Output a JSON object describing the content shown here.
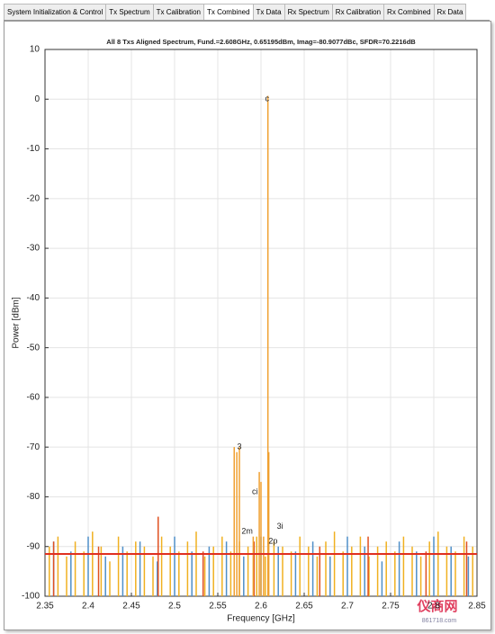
{
  "tabs": [
    "System Initialization & Control",
    "Tx Spectrum",
    "Tx Calibration",
    "Tx Combined",
    "Tx Data",
    "Rx Spectrum",
    "Rx Calibration",
    "Rx Combined",
    "Rx Data"
  ],
  "chart_data": {
    "type": "stem",
    "title": "All 8 Txs Aligned Spectrum, Fund.=2.608GHz, 0.65195dBm, Imag=-80.9077dBc, SFDR=70.2216dB",
    "x_label": "Frequency [GHz]",
    "y_label": "Power [dBm]",
    "xlim": [
      2.35,
      2.85
    ],
    "ylim": [
      -100,
      10
    ],
    "xticks": [
      2.35,
      2.4,
      2.45,
      2.5,
      2.55,
      2.6,
      2.65,
      2.7,
      2.75,
      2.8,
      2.85
    ],
    "yticks": [
      10,
      0,
      -10,
      -20,
      -30,
      -40,
      -50,
      -60,
      -70,
      -80,
      -90,
      -100
    ],
    "grid": true,
    "series": [
      {
        "color": "#4f8fc8",
        "x": [
          2.36,
          2.38,
          2.4,
          2.42,
          2.44,
          2.46,
          2.48,
          2.5,
          2.52,
          2.54,
          2.56,
          2.58,
          2.6,
          2.62,
          2.64,
          2.66,
          2.68,
          2.7,
          2.72,
          2.74,
          2.76,
          2.78,
          2.8,
          2.82,
          2.84
        ],
        "values": [
          -89,
          -91,
          -88,
          -92,
          -90,
          -89,
          -93,
          -88,
          -91,
          -90,
          -89,
          -92,
          -88,
          -90,
          -91,
          -89,
          -92,
          -88,
          -90,
          -93,
          -89,
          -91,
          -88,
          -90,
          -92
        ]
      },
      {
        "color": "#f0b020",
        "x": [
          2.355,
          2.365,
          2.375,
          2.385,
          2.395,
          2.405,
          2.415,
          2.425,
          2.435,
          2.445,
          2.455,
          2.465,
          2.475,
          2.485,
          2.495,
          2.505,
          2.515,
          2.525,
          2.535,
          2.545,
          2.555,
          2.565,
          2.575,
          2.585,
          2.595,
          2.605,
          2.615,
          2.625,
          2.635,
          2.645,
          2.655,
          2.665,
          2.675,
          2.685,
          2.695,
          2.705,
          2.715,
          2.725,
          2.735,
          2.745,
          2.755,
          2.765,
          2.775,
          2.785,
          2.795,
          2.805,
          2.815,
          2.825,
          2.835,
          2.845
        ],
        "values": [
          -90,
          -88,
          -92,
          -89,
          -91,
          -87,
          -90,
          -93,
          -88,
          -91,
          -89,
          -90,
          -92,
          -88,
          -90,
          -91,
          -89,
          -87,
          -92,
          -90,
          -88,
          -91,
          -89,
          -90,
          -88,
          -92,
          -89,
          -90,
          -91,
          -88,
          -90,
          -92,
          -89,
          -87,
          -91,
          -90,
          -88,
          -92,
          -90,
          -89,
          -91,
          -88,
          -90,
          -92,
          -89,
          -87,
          -90,
          -91,
          -88,
          -90
        ]
      },
      {
        "color": "#e05020",
        "x": [
          2.36,
          2.412,
          2.481,
          2.533,
          2.592,
          2.668,
          2.724,
          2.791,
          2.838
        ],
        "values": [
          -89,
          -90,
          -84,
          -91,
          -89,
          -90,
          -88,
          -91,
          -89
        ]
      },
      {
        "color": "#f0a030",
        "x": [
          2.569,
          2.572,
          2.575,
          2.591,
          2.598,
          2.6,
          2.603,
          2.608,
          2.609
        ],
        "values": [
          -70,
          -71,
          -70,
          -88,
          -75,
          -77,
          -88,
          0.65195,
          -71
        ]
      }
    ],
    "floor": {
      "color": "#e03020",
      "x": [
        2.35,
        2.85
      ],
      "values": [
        -91.5,
        -91.5
      ]
    },
    "annotations": [
      {
        "text": "c",
        "x": 2.607,
        "y": 0
      },
      {
        "text": "3",
        "x": 2.575,
        "y": -70
      },
      {
        "text": "ci",
        "x": 2.593,
        "y": -79
      },
      {
        "text": "2m",
        "x": 2.584,
        "y": -87
      },
      {
        "text": "3i",
        "x": 2.622,
        "y": -86
      },
      {
        "text": "2p",
        "x": 2.614,
        "y": -89
      }
    ]
  },
  "watermark": {
    "name": "仪商网",
    "url": "861718.com"
  }
}
